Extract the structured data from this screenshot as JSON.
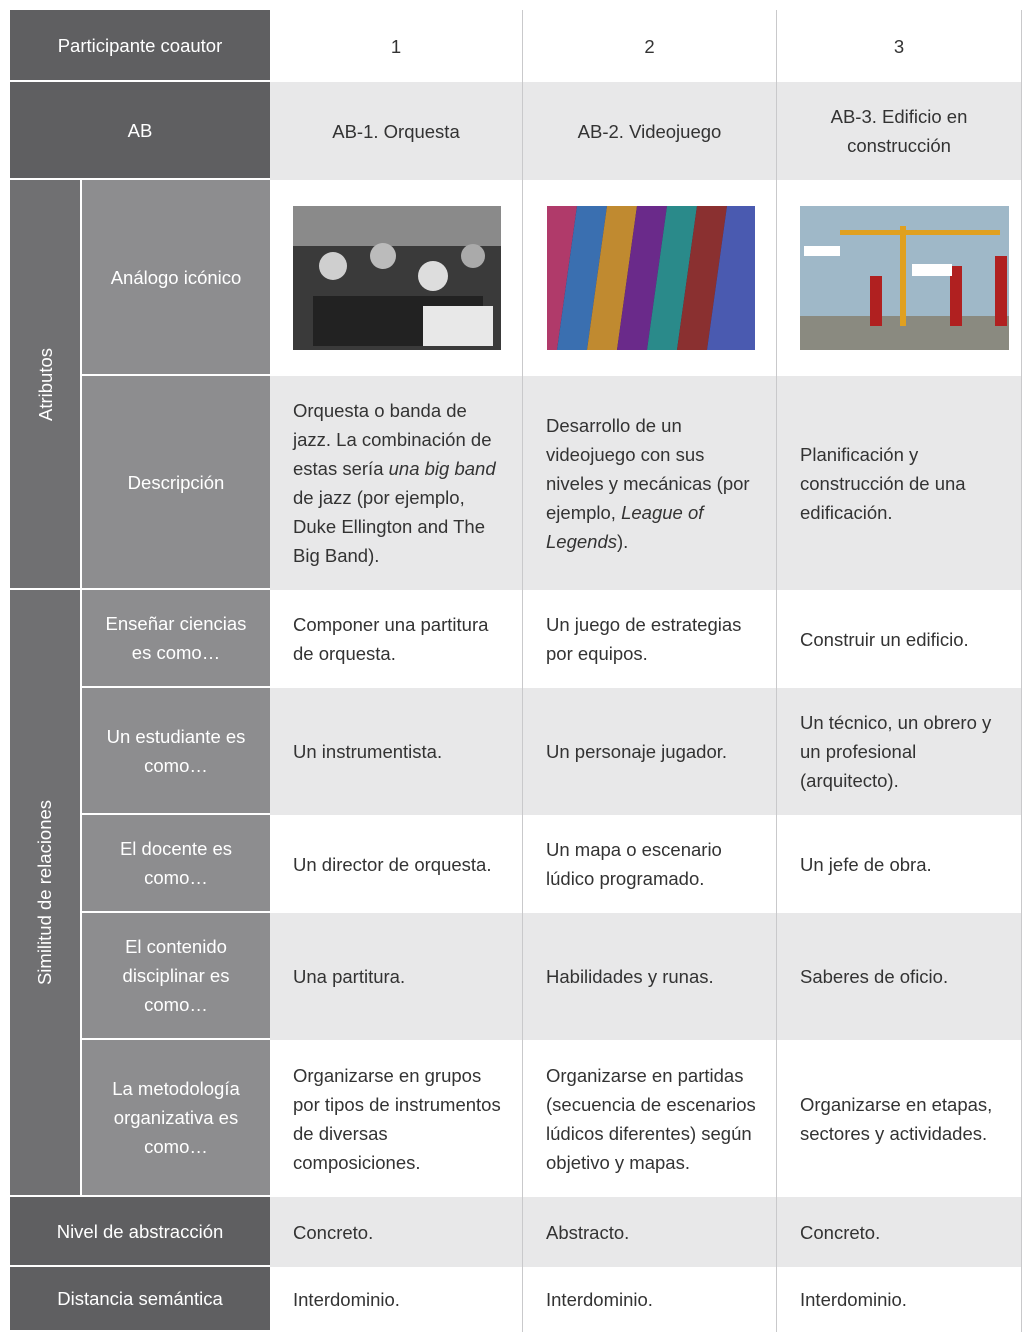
{
  "header": {
    "label": "Participante coautor",
    "columns": [
      "1",
      "2",
      "3"
    ]
  },
  "ab": {
    "label": "AB",
    "values": [
      "AB-1. Orquesta",
      "AB-2. Videojuego",
      "AB-3. Edificio en construcción"
    ]
  },
  "attributes": {
    "label": "Atributos",
    "analog": {
      "label": "Análogo icónico"
    },
    "description": {
      "label": "Descripción",
      "values": [
        [
          {
            "text": "Orquesta o banda de jazz. La combinación de estas sería ",
            "italic": false
          },
          {
            "text": "una big band",
            "italic": true
          },
          {
            "text": " de jazz (por ejemplo, Duke Ellington and The Big Band).",
            "italic": false
          }
        ],
        [
          {
            "text": "Desarrollo de un videojuego con sus niveles y mecánicas (por ejemplo, ",
            "italic": false
          },
          {
            "text": "League of Legends",
            "italic": true
          },
          {
            "text": ").",
            "italic": false
          }
        ],
        [
          {
            "text": "Planificación y construcción de una edificación.",
            "italic": false
          }
        ]
      ]
    }
  },
  "relations": {
    "label": "Similitud de relaciones",
    "rows": [
      {
        "label": "Enseñar ciencias es como…",
        "values": [
          "Componer una partitura de orquesta.",
          "Un juego de estrategias por equipos.",
          "Construir un edificio."
        ]
      },
      {
        "label": "Un estudiante es como…",
        "values": [
          "Un instrumentista.",
          "Un personaje jugador.",
          "Un técnico, un obrero y un profesional (arquitecto)."
        ]
      },
      {
        "label": "El docente es como…",
        "values": [
          "Un director de orquesta.",
          "Un mapa o escenario lúdico programado.",
          "Un jefe de obra."
        ]
      },
      {
        "label": "El contenido disciplinar es como…",
        "values": [
          "Una partitura.",
          "Habilidades y runas.",
          "Saberes de oficio."
        ]
      },
      {
        "label": "La metodología organizativa es como…",
        "values": [
          "Organizarse en grupos por tipos de instrumentos de diversas composiciones.",
          "Organizarse en partidas (secuencia de escenarios lúdicos diferentes) según objetivo y mapas.",
          "Organizarse en etapas, sectores y actividades."
        ]
      }
    ]
  },
  "footer": [
    {
      "label": "Nivel de abstracción",
      "values": [
        "Concreto.",
        "Abstracto.",
        "Concreto."
      ]
    },
    {
      "label": "Distancia semántica",
      "values": [
        "Interdominio.",
        "Interdominio.",
        "Interdominio."
      ]
    }
  ]
}
